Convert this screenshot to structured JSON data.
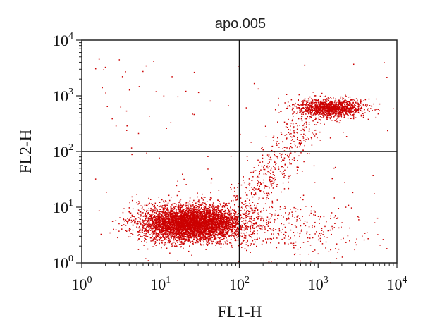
{
  "chart_data": {
    "type": "scatter",
    "title": "apo.005",
    "xlabel": "FL1-H",
    "ylabel": "FL2-H",
    "xscale": "log",
    "yscale": "log",
    "xlim": [
      1,
      10000
    ],
    "ylim": [
      1,
      10000
    ],
    "x_ticks": [
      {
        "value": 1,
        "base": "10",
        "exp": "0"
      },
      {
        "value": 10,
        "base": "10",
        "exp": "1"
      },
      {
        "value": 100,
        "base": "10",
        "exp": "2"
      },
      {
        "value": 1000,
        "base": "10",
        "exp": "3"
      },
      {
        "value": 10000,
        "base": "10",
        "exp": "4"
      }
    ],
    "y_ticks": [
      {
        "value": 1,
        "base": "10",
        "exp": "0"
      },
      {
        "value": 10,
        "base": "10",
        "exp": "1"
      },
      {
        "value": 100,
        "base": "10",
        "exp": "2"
      },
      {
        "value": 1000,
        "base": "10",
        "exp": "3"
      },
      {
        "value": 10000,
        "base": "10",
        "exp": "4"
      }
    ],
    "quadrant_gates": {
      "x": 100,
      "y": 100
    },
    "grid": false,
    "point_color": "#cc0000",
    "series": [
      {
        "population": "lower-left",
        "center": [
          25,
          5
        ],
        "count": 5200,
        "spread_log10": [
          0.33,
          0.16
        ]
      },
      {
        "population": "upper-right",
        "center": [
          1500,
          600
        ],
        "count": 1300,
        "spread_log10": [
          0.22,
          0.08
        ]
      },
      {
        "population": "transition",
        "from": [
          100,
          8
        ],
        "to": [
          800,
          400
        ],
        "count": 450
      },
      {
        "population": "lower-right",
        "center": [
          500,
          4
        ],
        "count": 300,
        "spread_log10": [
          0.45,
          0.25
        ]
      },
      {
        "population": "sparse-background",
        "count": 120
      }
    ]
  }
}
